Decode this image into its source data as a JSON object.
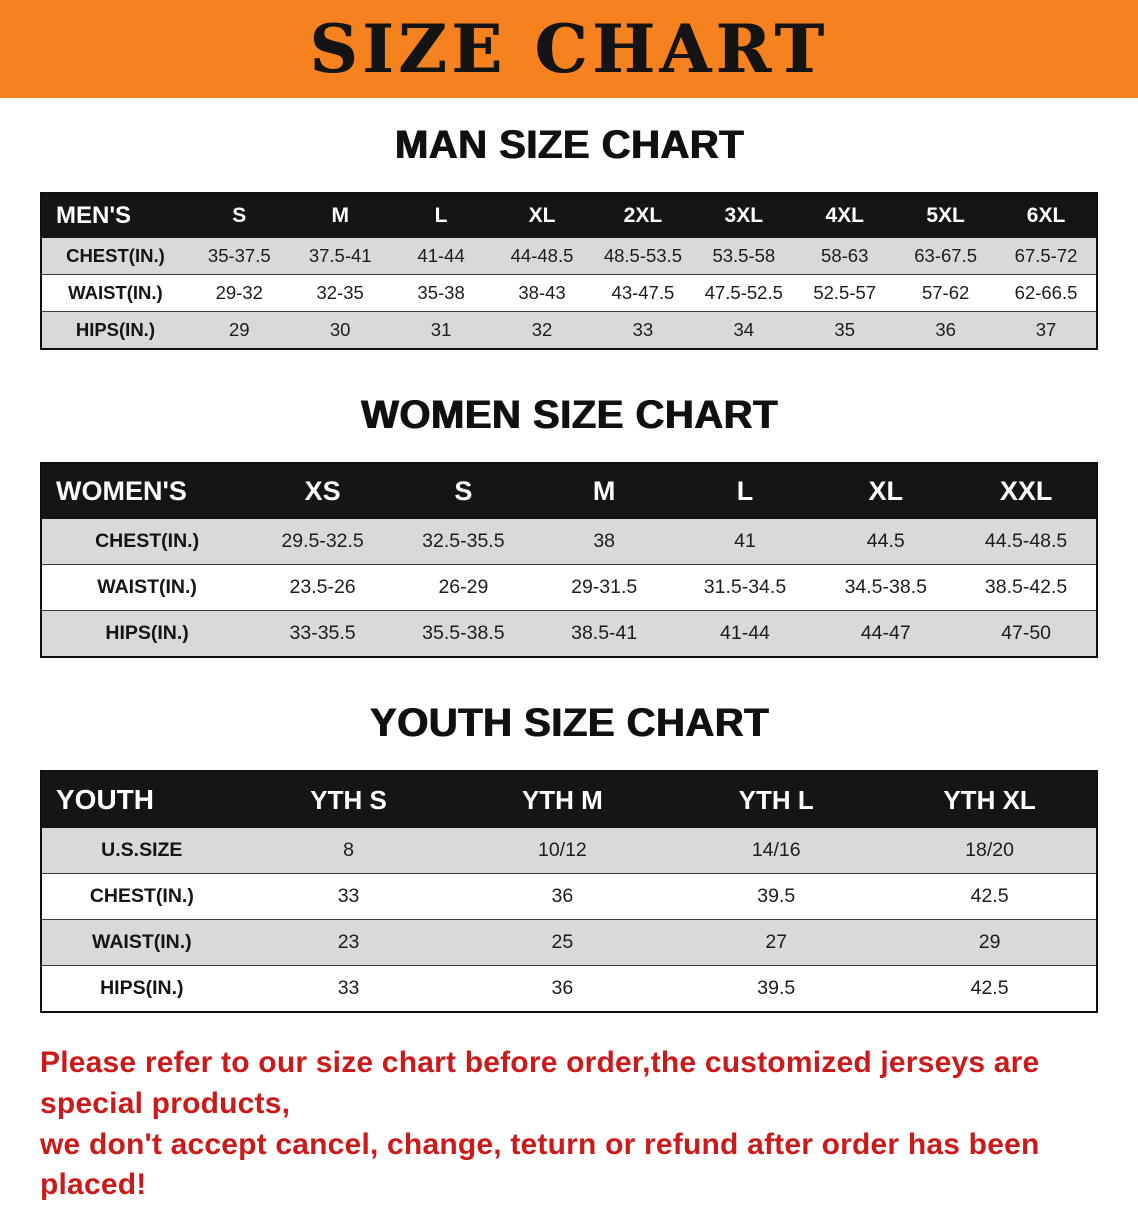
{
  "banner": {
    "title": "SIZE CHART"
  },
  "colors": {
    "banner_bg": "#f5821f",
    "header_bg": "#151515",
    "stripe_bg": "#d9d9d9",
    "disclaimer_red": "#cc1a1a",
    "text_black": "#111111"
  },
  "sections": [
    {
      "heading": "MAN SIZE CHART",
      "table": {
        "header": [
          "MEN'S",
          "S",
          "M",
          "L",
          "XL",
          "2XL",
          "3XL",
          "4XL",
          "5XL",
          "6XL"
        ],
        "rows": [
          [
            "CHEST(IN.)",
            "35-37.5",
            "37.5-41",
            "41-44",
            "44-48.5",
            "48.5-53.5",
            "53.5-58",
            "58-63",
            "63-67.5",
            "67.5-72"
          ],
          [
            "WAIST(IN.)",
            "29-32",
            "32-35",
            "35-38",
            "38-43",
            "43-47.5",
            "47.5-52.5",
            "52.5-57",
            "57-62",
            "62-66.5"
          ],
          [
            "HIPS(IN.)",
            "29",
            "30",
            "31",
            "32",
            "33",
            "34",
            "35",
            "36",
            "37"
          ]
        ]
      }
    },
    {
      "heading": "WOMEN SIZE CHART",
      "table": {
        "header": [
          "WOMEN'S",
          "XS",
          "S",
          "M",
          "L",
          "XL",
          "XXL"
        ],
        "rows": [
          [
            "CHEST(IN.)",
            "29.5-32.5",
            "32.5-35.5",
            "38",
            "41",
            "44.5",
            "44.5-48.5"
          ],
          [
            "WAIST(IN.)",
            "23.5-26",
            "26-29",
            "29-31.5",
            "31.5-34.5",
            "34.5-38.5",
            "38.5-42.5"
          ],
          [
            "HIPS(IN.)",
            "33-35.5",
            "35.5-38.5",
            "38.5-41",
            "41-44",
            "44-47",
            "47-50"
          ]
        ]
      }
    },
    {
      "heading": "YOUTH SIZE CHART",
      "table": {
        "header": [
          "YOUTH",
          "YTH S",
          "YTH M",
          "YTH L",
          "YTH XL"
        ],
        "rows": [
          [
            "U.S.SIZE",
            "8",
            "10/12",
            "14/16",
            "18/20"
          ],
          [
            "CHEST(IN.)",
            "33",
            "36",
            "39.5",
            "42.5"
          ],
          [
            "WAIST(IN.)",
            "23",
            "25",
            "27",
            "29"
          ],
          [
            "HIPS(IN.)",
            "33",
            "36",
            "39.5",
            "42.5"
          ]
        ]
      }
    }
  ],
  "disclaimer": {
    "line1": "Please refer to our size chart before order,the customized jerseys are special products,",
    "line2": "we don't accept cancel, change, teturn or refund after order has been placed!"
  }
}
